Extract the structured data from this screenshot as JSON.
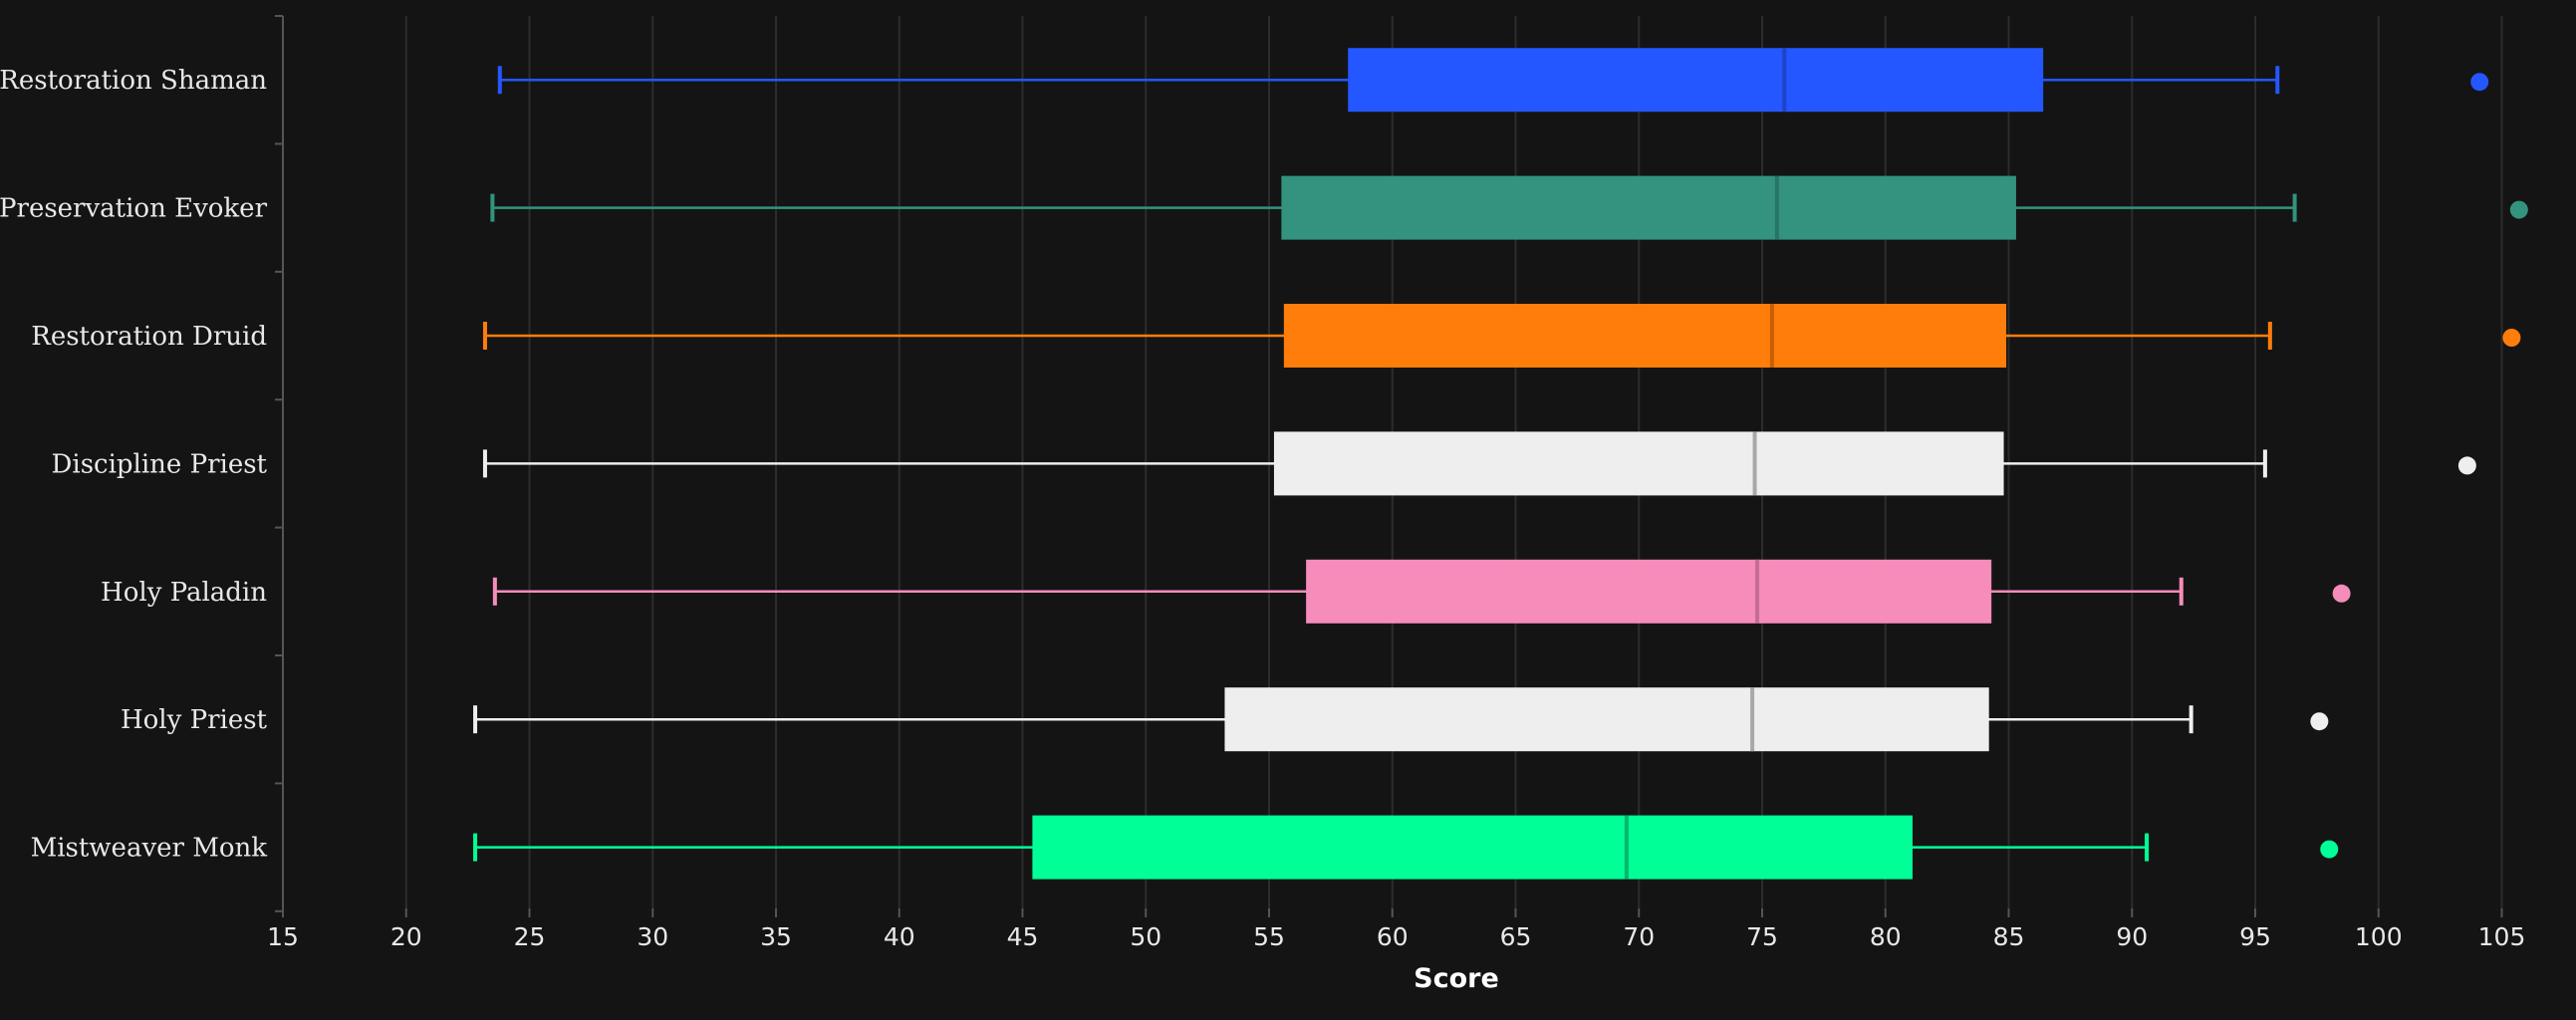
{
  "chart_data": {
    "type": "box",
    "orientation": "horizontal",
    "title": "",
    "xlabel": "Score",
    "ylabel": "",
    "xlim": [
      15,
      106
    ],
    "xticks": [
      15,
      20,
      25,
      30,
      35,
      40,
      45,
      50,
      55,
      60,
      65,
      70,
      75,
      80,
      85,
      90,
      95,
      100,
      105
    ],
    "grid": "vertical",
    "background": "#141414",
    "series": [
      {
        "name": "Restoration Shaman",
        "color": "#2457ff",
        "median_color": "#1d44c8",
        "whisker_low": 23.8,
        "q1": 58.2,
        "median": 75.9,
        "q3": 86.4,
        "whisker_high": 95.9,
        "max": 104.1
      },
      {
        "name": "Preservation Evoker",
        "color": "#33937f",
        "median_color": "#267565",
        "whisker_low": 23.5,
        "q1": 55.5,
        "median": 75.6,
        "q3": 85.3,
        "whisker_high": 96.6,
        "max": 105.7
      },
      {
        "name": "Restoration Druid",
        "color": "#ff7d0a",
        "median_color": "#c75f05",
        "whisker_low": 23.2,
        "q1": 55.6,
        "median": 75.4,
        "q3": 84.9,
        "whisker_high": 95.6,
        "max": 105.4
      },
      {
        "name": "Discipline Priest",
        "color": "#eeeeee",
        "median_color": "#a8a8a8",
        "whisker_low": 23.2,
        "q1": 55.2,
        "median": 74.7,
        "q3": 84.8,
        "whisker_high": 95.4,
        "max": 103.6
      },
      {
        "name": "Holy Paladin",
        "color": "#f58cba",
        "median_color": "#c46d93",
        "whisker_low": 23.6,
        "q1": 56.5,
        "median": 74.8,
        "q3": 84.3,
        "whisker_high": 92.0,
        "max": 98.5
      },
      {
        "name": "Holy Priest",
        "color": "#eeeeee",
        "median_color": "#a8a8a8",
        "whisker_low": 22.8,
        "q1": 53.2,
        "median": 74.6,
        "q3": 84.2,
        "whisker_high": 92.4,
        "max": 97.6
      },
      {
        "name": "Mistweaver Monk",
        "color": "#00ff96",
        "median_color": "#00b86d",
        "whisker_low": 22.8,
        "q1": 45.4,
        "median": 69.5,
        "q3": 81.1,
        "whisker_high": 90.6,
        "max": 98.0
      }
    ]
  }
}
